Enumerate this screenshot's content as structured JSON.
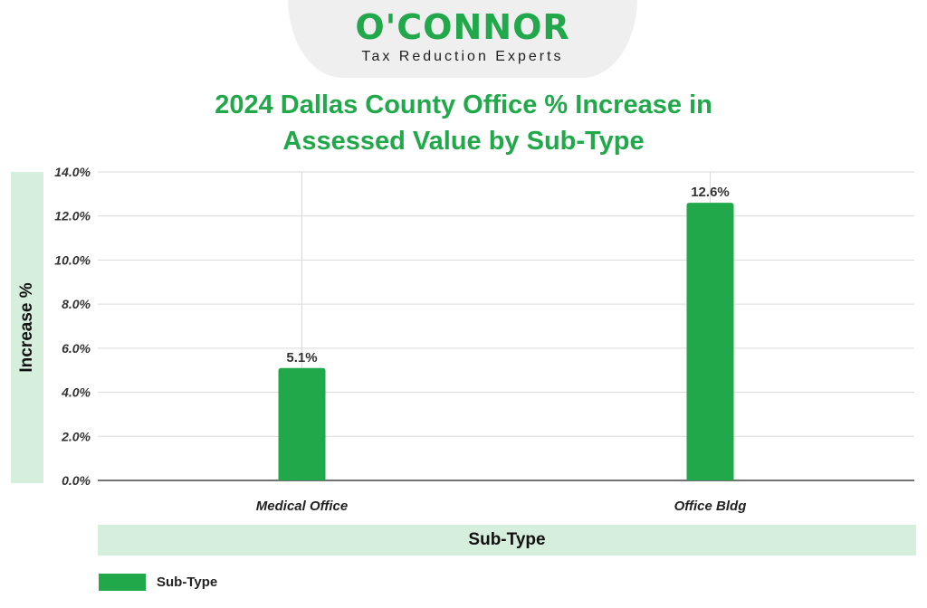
{
  "brand": {
    "name": "O'CONNOR",
    "tagline": "Tax Reduction Experts"
  },
  "chart_data": {
    "type": "bar",
    "title_line1": "2024 Dallas County Office % Increase in",
    "title_line2": "Assessed Value by Sub-Type",
    "xlabel": "Sub-Type",
    "ylabel": "Increase %",
    "categories": [
      "Medical Office",
      "Office Bldg"
    ],
    "series": [
      {
        "name": "Sub-Type",
        "values": [
          5.1,
          12.6
        ],
        "value_labels": [
          "5.1%",
          "12.6%"
        ],
        "color": "#21a84a"
      }
    ],
    "ylim": [
      0,
      14
    ],
    "yticks": [
      0,
      2,
      4,
      6,
      8,
      10,
      12,
      14
    ],
    "ytick_labels": [
      "0.0%",
      "2.0%",
      "4.0%",
      "6.0%",
      "8.0%",
      "10.0%",
      "12.0%",
      "14.0%"
    ],
    "grid": true,
    "legend_position": "bottom-left"
  },
  "colors": {
    "accent": "#21a84a",
    "label_band": "#d6efdc",
    "grid": "#d9d9d9"
  }
}
